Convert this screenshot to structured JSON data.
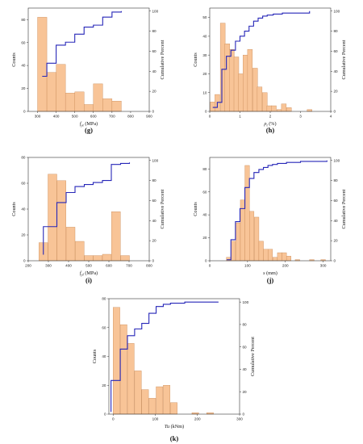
{
  "panels": [
    {
      "label": "(g)",
      "chart_data": {
        "type": "bar",
        "xlabel": "f_yt (MPa)",
        "xlabel_main": "f",
        "xlabel_sub": "yt",
        "xlabel_unit": " (MPa)",
        "ylabel": "Counts",
        "y2label": "Cumulative Percent",
        "xlim": [
          250,
          900
        ],
        "ylim": [
          0,
          90
        ],
        "y2lim": [
          0,
          103
        ],
        "xticks": [
          300,
          400,
          500,
          600,
          700,
          800,
          900
        ],
        "yticks": [
          0,
          20,
          40,
          60,
          80
        ],
        "y2ticks": [
          0,
          20,
          40,
          60,
          80,
          100
        ],
        "bar_width": 50,
        "bars": [
          {
            "x": 325,
            "value": 82
          },
          {
            "x": 375,
            "value": 34
          },
          {
            "x": 425,
            "value": 41
          },
          {
            "x": 475,
            "value": 16
          },
          {
            "x": 525,
            "value": 17
          },
          {
            "x": 575,
            "value": 6
          },
          {
            "x": 625,
            "value": 24
          },
          {
            "x": 675,
            "value": 11
          },
          {
            "x": 725,
            "value": 9
          }
        ],
        "cumulative": {
          "x": [
            325,
            350,
            375,
            400,
            425,
            450,
            475,
            500,
            525,
            550,
            575,
            600,
            625,
            650,
            675,
            700,
            725,
            750
          ],
          "y": [
            35,
            48,
            48,
            66,
            66,
            69,
            69,
            77,
            77,
            84,
            84,
            86,
            86,
            94,
            94,
            99,
            99,
            100
          ]
        }
      }
    },
    {
      "label": "(h)",
      "chart_data": {
        "type": "bar",
        "xlabel": "ρ_t (%)",
        "xlabel_main": "ρ",
        "xlabel_sub": "t",
        "xlabel_unit": " (%)",
        "ylabel": "Counts",
        "y2label": "Cumulative Percent",
        "xlim": [
          0,
          4
        ],
        "ylim": [
          0,
          55
        ],
        "y2lim": [
          0,
          103
        ],
        "xticks": [
          0,
          1,
          2,
          3,
          4
        ],
        "yticks": [
          0,
          10,
          20,
          30,
          40,
          50
        ],
        "y2ticks": [
          0,
          20,
          40,
          60,
          80,
          100
        ],
        "bar_width": 0.16,
        "bars": [
          {
            "x": 0.1,
            "value": 5
          },
          {
            "x": 0.25,
            "value": 9
          },
          {
            "x": 0.43,
            "value": 47
          },
          {
            "x": 0.58,
            "value": 36
          },
          {
            "x": 0.73,
            "value": 33
          },
          {
            "x": 0.88,
            "value": 29
          },
          {
            "x": 1.03,
            "value": 20
          },
          {
            "x": 1.18,
            "value": 30
          },
          {
            "x": 1.33,
            "value": 33
          },
          {
            "x": 1.5,
            "value": 23
          },
          {
            "x": 1.65,
            "value": 13
          },
          {
            "x": 1.82,
            "value": 10
          },
          {
            "x": 1.97,
            "value": 3
          },
          {
            "x": 2.12,
            "value": 3
          },
          {
            "x": 2.3,
            "value": 1
          },
          {
            "x": 2.45,
            "value": 4
          },
          {
            "x": 2.62,
            "value": 2
          },
          {
            "x": 3.3,
            "value": 1
          }
        ],
        "cumulative": {
          "x": [
            0.1,
            0.25,
            0.25,
            0.4,
            0.4,
            0.55,
            0.55,
            0.7,
            0.7,
            0.85,
            0.85,
            1.0,
            1.0,
            1.15,
            1.15,
            1.3,
            1.3,
            1.45,
            1.45,
            1.6,
            1.6,
            1.75,
            1.75,
            1.9,
            1.9,
            2.1,
            2.1,
            2.4,
            2.4,
            3.3
          ],
          "y": [
            4,
            4,
            9,
            9,
            42,
            42,
            55,
            55,
            61,
            61,
            70,
            70,
            75,
            75,
            80,
            80,
            85,
            85,
            90,
            90,
            93,
            93,
            95,
            95,
            96,
            96,
            97,
            97,
            98,
            100
          ]
        }
      }
    },
    {
      "label": "(i)",
      "chart_data": {
        "type": "bar",
        "xlabel": "f_yl (MPa)",
        "xlabel_main": "f",
        "xlabel_sub": "yl",
        "xlabel_unit": " (MPa)",
        "ylabel": "Counts",
        "y2label": "Cumulative Percent",
        "xlim": [
          200,
          800
        ],
        "ylim": [
          0,
          80
        ],
        "y2lim": [
          0,
          103
        ],
        "xticks": [
          200,
          300,
          400,
          500,
          600,
          700,
          800
        ],
        "yticks": [
          0,
          20,
          40,
          60,
          80
        ],
        "y2ticks": [
          0,
          20,
          40,
          60,
          80,
          100
        ],
        "bar_width": 44,
        "bars": [
          {
            "x": 275,
            "value": 14
          },
          {
            "x": 320,
            "value": 67
          },
          {
            "x": 365,
            "value": 62
          },
          {
            "x": 410,
            "value": 26
          },
          {
            "x": 455,
            "value": 15
          },
          {
            "x": 500,
            "value": 4
          },
          {
            "x": 545,
            "value": 4
          },
          {
            "x": 590,
            "value": 5
          },
          {
            "x": 635,
            "value": 38
          },
          {
            "x": 680,
            "value": 4
          }
        ],
        "cumulative": {
          "x": [
            275,
            275,
            298,
            298,
            342,
            342,
            388,
            388,
            432,
            432,
            478,
            478,
            522,
            522,
            568,
            568,
            612,
            612,
            658,
            658,
            702,
            702
          ],
          "y": [
            6,
            34,
            34,
            34,
            34,
            58,
            58,
            68,
            68,
            74,
            74,
            76,
            76,
            78,
            78,
            80,
            80,
            96,
            96,
            97,
            97,
            98
          ]
        }
      }
    },
    {
      "label": "(j)",
      "chart_data": {
        "type": "bar",
        "xlabel": "s (mm)",
        "xlabel_main": "s",
        "xlabel_sub": "",
        "xlabel_unit": " (mm)",
        "ylabel": "Counts",
        "y2label": "Cumulative Percent",
        "xlim": [
          0,
          320
        ],
        "ylim": [
          0,
          90
        ],
        "y2lim": [
          0,
          103
        ],
        "xticks": [
          0,
          100,
          200,
          300
        ],
        "yticks": [
          0,
          20,
          40,
          60,
          80
        ],
        "y2ticks": [
          0,
          20,
          40,
          60,
          80,
          100
        ],
        "bar_width": 12,
        "bars": [
          {
            "x": 50,
            "value": 3
          },
          {
            "x": 62,
            "value": 17
          },
          {
            "x": 75,
            "value": 33
          },
          {
            "x": 87,
            "value": 53
          },
          {
            "x": 99,
            "value": 83
          },
          {
            "x": 111,
            "value": 43
          },
          {
            "x": 124,
            "value": 38
          },
          {
            "x": 136,
            "value": 17
          },
          {
            "x": 148,
            "value": 10
          },
          {
            "x": 160,
            "value": 10
          },
          {
            "x": 173,
            "value": 3
          },
          {
            "x": 185,
            "value": 7
          },
          {
            "x": 197,
            "value": 7
          },
          {
            "x": 209,
            "value": 4
          },
          {
            "x": 232,
            "value": 1
          },
          {
            "x": 270,
            "value": 1
          },
          {
            "x": 300,
            "value": 1
          }
        ],
        "cumulative": {
          "x": [
            45,
            56,
            56,
            68,
            68,
            80,
            80,
            93,
            93,
            105,
            105,
            117,
            117,
            130,
            130,
            142,
            142,
            154,
            154,
            166,
            166,
            179,
            179,
            203,
            203,
            240,
            240,
            310
          ],
          "y": [
            1,
            1,
            21,
            21,
            39,
            39,
            52,
            52,
            73,
            73,
            82,
            82,
            88,
            88,
            91,
            91,
            93,
            93,
            95,
            95,
            96,
            96,
            97,
            97,
            98,
            98,
            99,
            100
          ]
        }
      }
    },
    {
      "label": "(k)",
      "chart_data": {
        "type": "bar",
        "xlabel": "Tu (kNm)",
        "xlabel_main": "Tu",
        "xlabel_sub": "",
        "xlabel_unit": " (kNm)",
        "ylabel": "Counts",
        "y2label": "Cumulative Percent",
        "xlim": [
          -10,
          300
        ],
        "ylim": [
          0,
          80
        ],
        "y2lim": [
          0,
          103
        ],
        "xticks": [
          0,
          100,
          200,
          300
        ],
        "yticks": [
          0,
          20,
          40,
          60,
          80
        ],
        "y2ticks": [
          0,
          20,
          40,
          60,
          80,
          100
        ],
        "bar_width": 16,
        "bars": [
          {
            "x": 8,
            "value": 74
          },
          {
            "x": 25,
            "value": 62
          },
          {
            "x": 42,
            "value": 49
          },
          {
            "x": 59,
            "value": 30
          },
          {
            "x": 76,
            "value": 17
          },
          {
            "x": 93,
            "value": 11
          },
          {
            "x": 110,
            "value": 19
          },
          {
            "x": 127,
            "value": 20
          },
          {
            "x": 144,
            "value": 8
          },
          {
            "x": 195,
            "value": 1
          },
          {
            "x": 230,
            "value": 1
          }
        ],
        "cumulative": {
          "x": [
            -5,
            -5,
            0,
            0,
            17,
            17,
            34,
            34,
            51,
            51,
            68,
            68,
            85,
            85,
            102,
            102,
            119,
            119,
            136,
            136,
            170,
            170,
            250
          ],
          "y": [
            2,
            30,
            30,
            30,
            30,
            58,
            58,
            70,
            70,
            76,
            76,
            81,
            81,
            90,
            90,
            96,
            96,
            98,
            98,
            99,
            99,
            100,
            100
          ]
        }
      }
    }
  ]
}
